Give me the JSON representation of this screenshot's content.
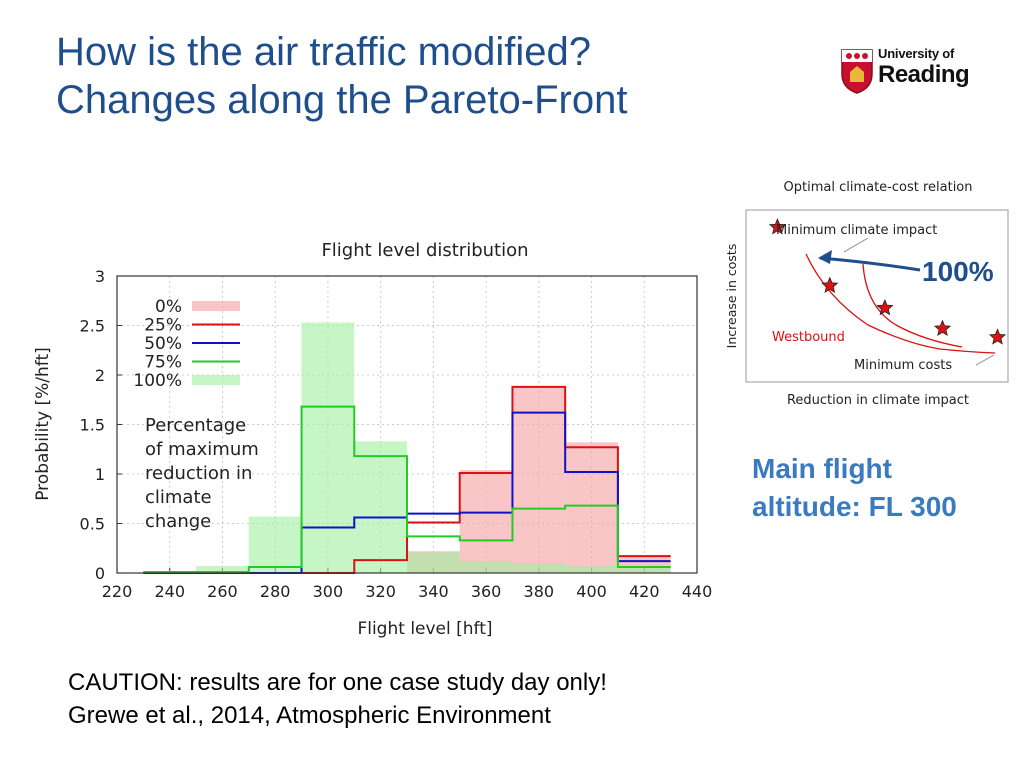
{
  "slide": {
    "title_line1": "How is the air traffic modified?",
    "title_line2": "Changes along the Pareto-Front",
    "title_color": "#1f4e8c"
  },
  "logo": {
    "line1": "University of",
    "line2": "Reading",
    "shield_color": "#c8102e"
  },
  "chart_data": [
    {
      "type": "bar",
      "title": "Flight level distribution",
      "xlabel": "Flight level [hft]",
      "ylabel": "Probability [%/hft]",
      "xlim": [
        220,
        440
      ],
      "ylim": [
        0,
        3
      ],
      "x_ticks": [
        "220",
        "240",
        "260",
        "280",
        "300",
        "320",
        "340",
        "360",
        "380",
        "400",
        "420",
        "440"
      ],
      "y_ticks": [
        "0",
        "0.5",
        "1",
        "1.5",
        "2",
        "2.5",
        "3"
      ],
      "bin_edges": [
        230,
        250,
        270,
        290,
        310,
        330,
        350,
        370,
        390,
        410,
        430
      ],
      "series": [
        {
          "name": "0%",
          "style": "filled",
          "color": "#f4a0a0",
          "values": [
            0,
            0,
            0,
            0,
            0,
            0.22,
            1.04,
            1.88,
            1.32,
            0.17
          ]
        },
        {
          "name": "25%",
          "style": "step",
          "color": "#dd1111",
          "values": [
            0,
            0,
            0,
            0,
            0.13,
            0.51,
            1.01,
            1.88,
            1.27,
            0.17
          ]
        },
        {
          "name": "50%",
          "style": "step",
          "color": "#1111cc",
          "values": [
            0,
            0,
            0,
            0.46,
            0.56,
            0.6,
            0.61,
            1.62,
            1.02,
            0.12
          ]
        },
        {
          "name": "75%",
          "style": "step",
          "color": "#22cc22",
          "values": [
            0.01,
            0.01,
            0.06,
            1.68,
            1.18,
            0.37,
            0.33,
            0.65,
            0.68,
            0.06
          ]
        },
        {
          "name": "100%",
          "style": "filled",
          "color": "#a0eea0",
          "values": [
            0.02,
            0.07,
            0.57,
            2.53,
            1.33,
            0.21,
            0.12,
            0.1,
            0.07,
            0.06
          ]
        }
      ],
      "legend_position": "top-left",
      "annotation": [
        "Percentage",
        "of maximum",
        "reduction in",
        "climate",
        "change"
      ],
      "grid": true
    },
    {
      "type": "scatter",
      "title": "Optimal climate-cost relation",
      "xlabel": "Reduction in climate impact",
      "ylabel": "Increase in costs",
      "axis_ticks": false,
      "labels": {
        "min_climate": "Minimum climate impact",
        "westbound": "Westbound",
        "min_costs": "Minimum costs"
      },
      "series": [
        {
          "name": "Westbound",
          "color": "#dd1111",
          "points": [
            [
              0.12,
              0.9
            ],
            [
              0.32,
              0.56
            ],
            [
              0.53,
              0.43
            ],
            [
              0.75,
              0.31
            ],
            [
              0.96,
              0.26
            ]
          ]
        }
      ],
      "highlight": "100%"
    }
  ],
  "notes": {
    "main_altitude_line1": "Main flight",
    "main_altitude_line2": "altitude: FL 300",
    "caution": "CAUTION: results are for one case study day only!",
    "citation": "Grewe et al., 2014, Atmospheric Environment"
  }
}
